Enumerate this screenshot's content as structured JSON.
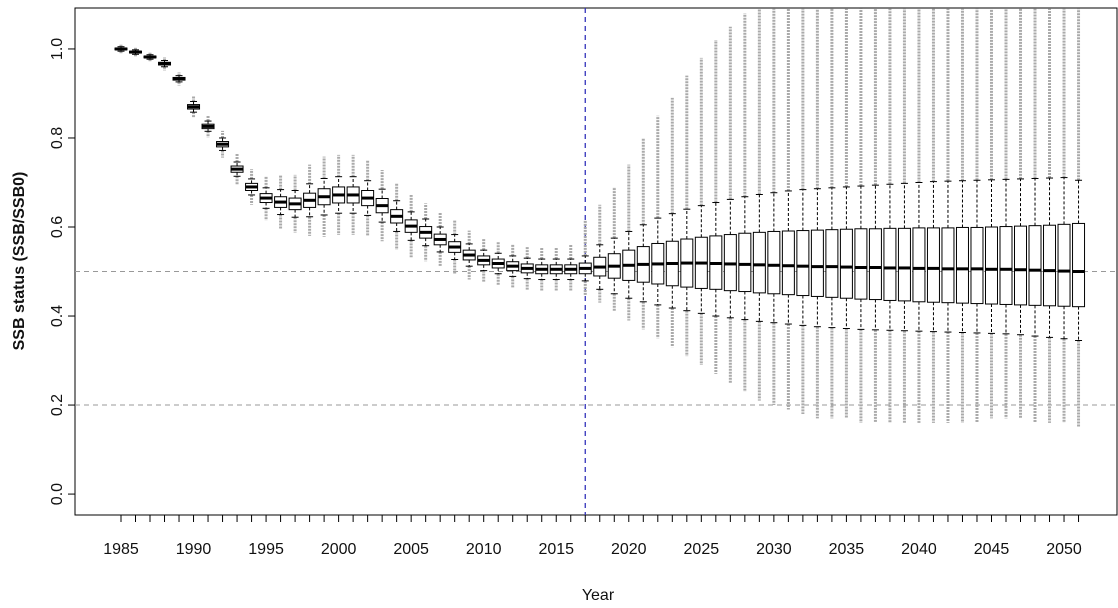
{
  "chart_data": {
    "type": "boxplot",
    "x_label": "Year",
    "y_label": "SSB status (SSB/SSB0)",
    "x": [
      1985,
      1986,
      1987,
      1988,
      1989,
      1990,
      1991,
      1992,
      1993,
      1994,
      1995,
      1996,
      1997,
      1998,
      1999,
      2000,
      2001,
      2002,
      2003,
      2004,
      2005,
      2006,
      2007,
      2008,
      2009,
      2010,
      2011,
      2012,
      2013,
      2014,
      2015,
      2016,
      2017,
      2018,
      2019,
      2020,
      2021,
      2022,
      2023,
      2024,
      2025,
      2026,
      2027,
      2028,
      2029,
      2030,
      2031,
      2032,
      2033,
      2034,
      2035,
      2036,
      2037,
      2038,
      2039,
      2040,
      2041,
      2042,
      2043,
      2044,
      2045,
      2046,
      2047,
      2048,
      2049,
      2050,
      2051
    ],
    "median": [
      1.0,
      0.993,
      0.982,
      0.967,
      0.933,
      0.87,
      0.826,
      0.786,
      0.73,
      0.69,
      0.665,
      0.656,
      0.652,
      0.66,
      0.668,
      0.672,
      0.672,
      0.665,
      0.648,
      0.624,
      0.602,
      0.588,
      0.572,
      0.555,
      0.537,
      0.525,
      0.518,
      0.512,
      0.507,
      0.505,
      0.505,
      0.505,
      0.507,
      0.51,
      0.512,
      0.514,
      0.516,
      0.517,
      0.518,
      0.519,
      0.519,
      0.518,
      0.517,
      0.516,
      0.515,
      0.514,
      0.513,
      0.512,
      0.511,
      0.511,
      0.51,
      0.509,
      0.509,
      0.508,
      0.508,
      0.507,
      0.507,
      0.506,
      0.506,
      0.506,
      0.505,
      0.505,
      0.504,
      0.503,
      0.502,
      0.501,
      0.5
    ],
    "q1": [
      0.998,
      0.991,
      0.98,
      0.964,
      0.93,
      0.865,
      0.821,
      0.78,
      0.723,
      0.682,
      0.655,
      0.644,
      0.639,
      0.644,
      0.65,
      0.654,
      0.654,
      0.648,
      0.632,
      0.609,
      0.588,
      0.575,
      0.56,
      0.543,
      0.526,
      0.515,
      0.508,
      0.502,
      0.497,
      0.495,
      0.495,
      0.495,
      0.495,
      0.49,
      0.485,
      0.48,
      0.476,
      0.472,
      0.468,
      0.465,
      0.462,
      0.46,
      0.457,
      0.455,
      0.452,
      0.45,
      0.448,
      0.446,
      0.444,
      0.442,
      0.44,
      0.438,
      0.437,
      0.435,
      0.434,
      0.432,
      0.431,
      0.43,
      0.429,
      0.428,
      0.427,
      0.426,
      0.425,
      0.424,
      0.423,
      0.422,
      0.421
    ],
    "q3": [
      1.002,
      0.995,
      0.984,
      0.97,
      0.936,
      0.875,
      0.831,
      0.792,
      0.737,
      0.698,
      0.675,
      0.668,
      0.665,
      0.676,
      0.686,
      0.69,
      0.69,
      0.682,
      0.664,
      0.639,
      0.616,
      0.601,
      0.584,
      0.567,
      0.548,
      0.535,
      0.528,
      0.522,
      0.517,
      0.515,
      0.515,
      0.515,
      0.519,
      0.532,
      0.54,
      0.548,
      0.556,
      0.563,
      0.568,
      0.573,
      0.577,
      0.58,
      0.583,
      0.586,
      0.588,
      0.59,
      0.591,
      0.592,
      0.593,
      0.594,
      0.595,
      0.596,
      0.596,
      0.597,
      0.597,
      0.598,
      0.598,
      0.598,
      0.599,
      0.599,
      0.6,
      0.601,
      0.602,
      0.603,
      0.604,
      0.606,
      0.608
    ],
    "whisker_low": [
      0.995,
      0.988,
      0.977,
      0.96,
      0.926,
      0.858,
      0.815,
      0.772,
      0.714,
      0.672,
      0.642,
      0.628,
      0.622,
      0.623,
      0.627,
      0.631,
      0.631,
      0.626,
      0.611,
      0.59,
      0.57,
      0.558,
      0.544,
      0.527,
      0.512,
      0.502,
      0.495,
      0.489,
      0.484,
      0.482,
      0.482,
      0.482,
      0.479,
      0.46,
      0.45,
      0.44,
      0.432,
      0.425,
      0.418,
      0.412,
      0.406,
      0.4,
      0.396,
      0.392,
      0.388,
      0.385,
      0.382,
      0.379,
      0.376,
      0.374,
      0.372,
      0.37,
      0.369,
      0.368,
      0.367,
      0.366,
      0.365,
      0.364,
      0.363,
      0.362,
      0.361,
      0.36,
      0.358,
      0.355,
      0.352,
      0.349,
      0.345
    ],
    "whisker_high": [
      1.005,
      0.998,
      0.987,
      0.974,
      0.94,
      0.882,
      0.838,
      0.8,
      0.746,
      0.708,
      0.688,
      0.684,
      0.682,
      0.697,
      0.709,
      0.713,
      0.713,
      0.704,
      0.685,
      0.659,
      0.634,
      0.618,
      0.6,
      0.583,
      0.562,
      0.548,
      0.541,
      0.535,
      0.53,
      0.528,
      0.528,
      0.528,
      0.535,
      0.56,
      0.575,
      0.59,
      0.605,
      0.62,
      0.63,
      0.64,
      0.648,
      0.655,
      0.662,
      0.668,
      0.673,
      0.677,
      0.681,
      0.684,
      0.686,
      0.688,
      0.69,
      0.692,
      0.694,
      0.696,
      0.698,
      0.7,
      0.702,
      0.703,
      0.704,
      0.705,
      0.706,
      0.707,
      0.708,
      0.709,
      0.71,
      0.711,
      0.705
    ],
    "outlier_low": [
      0.99,
      0.983,
      0.972,
      0.952,
      0.918,
      0.845,
      0.801,
      0.756,
      0.695,
      0.65,
      0.615,
      0.596,
      0.587,
      0.58,
      0.578,
      0.582,
      0.582,
      0.58,
      0.568,
      0.549,
      0.532,
      0.523,
      0.512,
      0.495,
      0.482,
      0.475,
      0.468,
      0.462,
      0.457,
      0.455,
      0.455,
      0.455,
      0.447,
      0.43,
      0.41,
      0.39,
      0.37,
      0.35,
      0.33,
      0.31,
      0.29,
      0.27,
      0.25,
      0.23,
      0.21,
      0.2,
      0.19,
      0.18,
      0.17,
      0.17,
      0.17,
      0.16,
      0.16,
      0.16,
      0.16,
      0.16,
      0.16,
      0.16,
      0.16,
      0.16,
      0.17,
      0.17,
      0.17,
      0.16,
      0.16,
      0.16,
      0.15
    ],
    "outlier_high": [
      1.01,
      1.003,
      0.992,
      0.982,
      0.948,
      0.895,
      0.851,
      0.816,
      0.765,
      0.73,
      0.715,
      0.716,
      0.717,
      0.74,
      0.758,
      0.762,
      0.762,
      0.75,
      0.728,
      0.699,
      0.672,
      0.653,
      0.632,
      0.615,
      0.592,
      0.575,
      0.568,
      0.562,
      0.557,
      0.555,
      0.555,
      0.56,
      0.615,
      0.65,
      0.69,
      0.74,
      0.8,
      0.85,
      0.89,
      0.94,
      0.98,
      1.02,
      1.05,
      1.08,
      1.09,
      1.09,
      1.09,
      1.09,
      1.09,
      1.09,
      1.09,
      1.09,
      1.09,
      1.09,
      1.09,
      1.09,
      1.09,
      1.09,
      1.09,
      1.09,
      1.09,
      1.09,
      1.09,
      1.09,
      1.09,
      1.09,
      1.09
    ],
    "box_color": "#000000",
    "outlier_color": "#aaaaaa",
    "xlim": [
      1981.83,
      2053.72
    ],
    "ylim": [
      -0.047,
      1.092
    ],
    "xticks": [
      1985,
      1990,
      1995,
      2000,
      2005,
      2010,
      2015,
      2020,
      2025,
      2030,
      2035,
      2040,
      2045,
      2050
    ],
    "yticks": [
      {
        "value": 0,
        "label": "0.0"
      },
      0.2,
      0.4,
      0.6,
      0.8,
      {
        "value": 1,
        "label": "1.0"
      }
    ],
    "hlines": [
      0.5,
      0.2
    ],
    "hline_color": "#999999",
    "vlines": [
      2017
    ],
    "vline_color": "#3333bb"
  }
}
